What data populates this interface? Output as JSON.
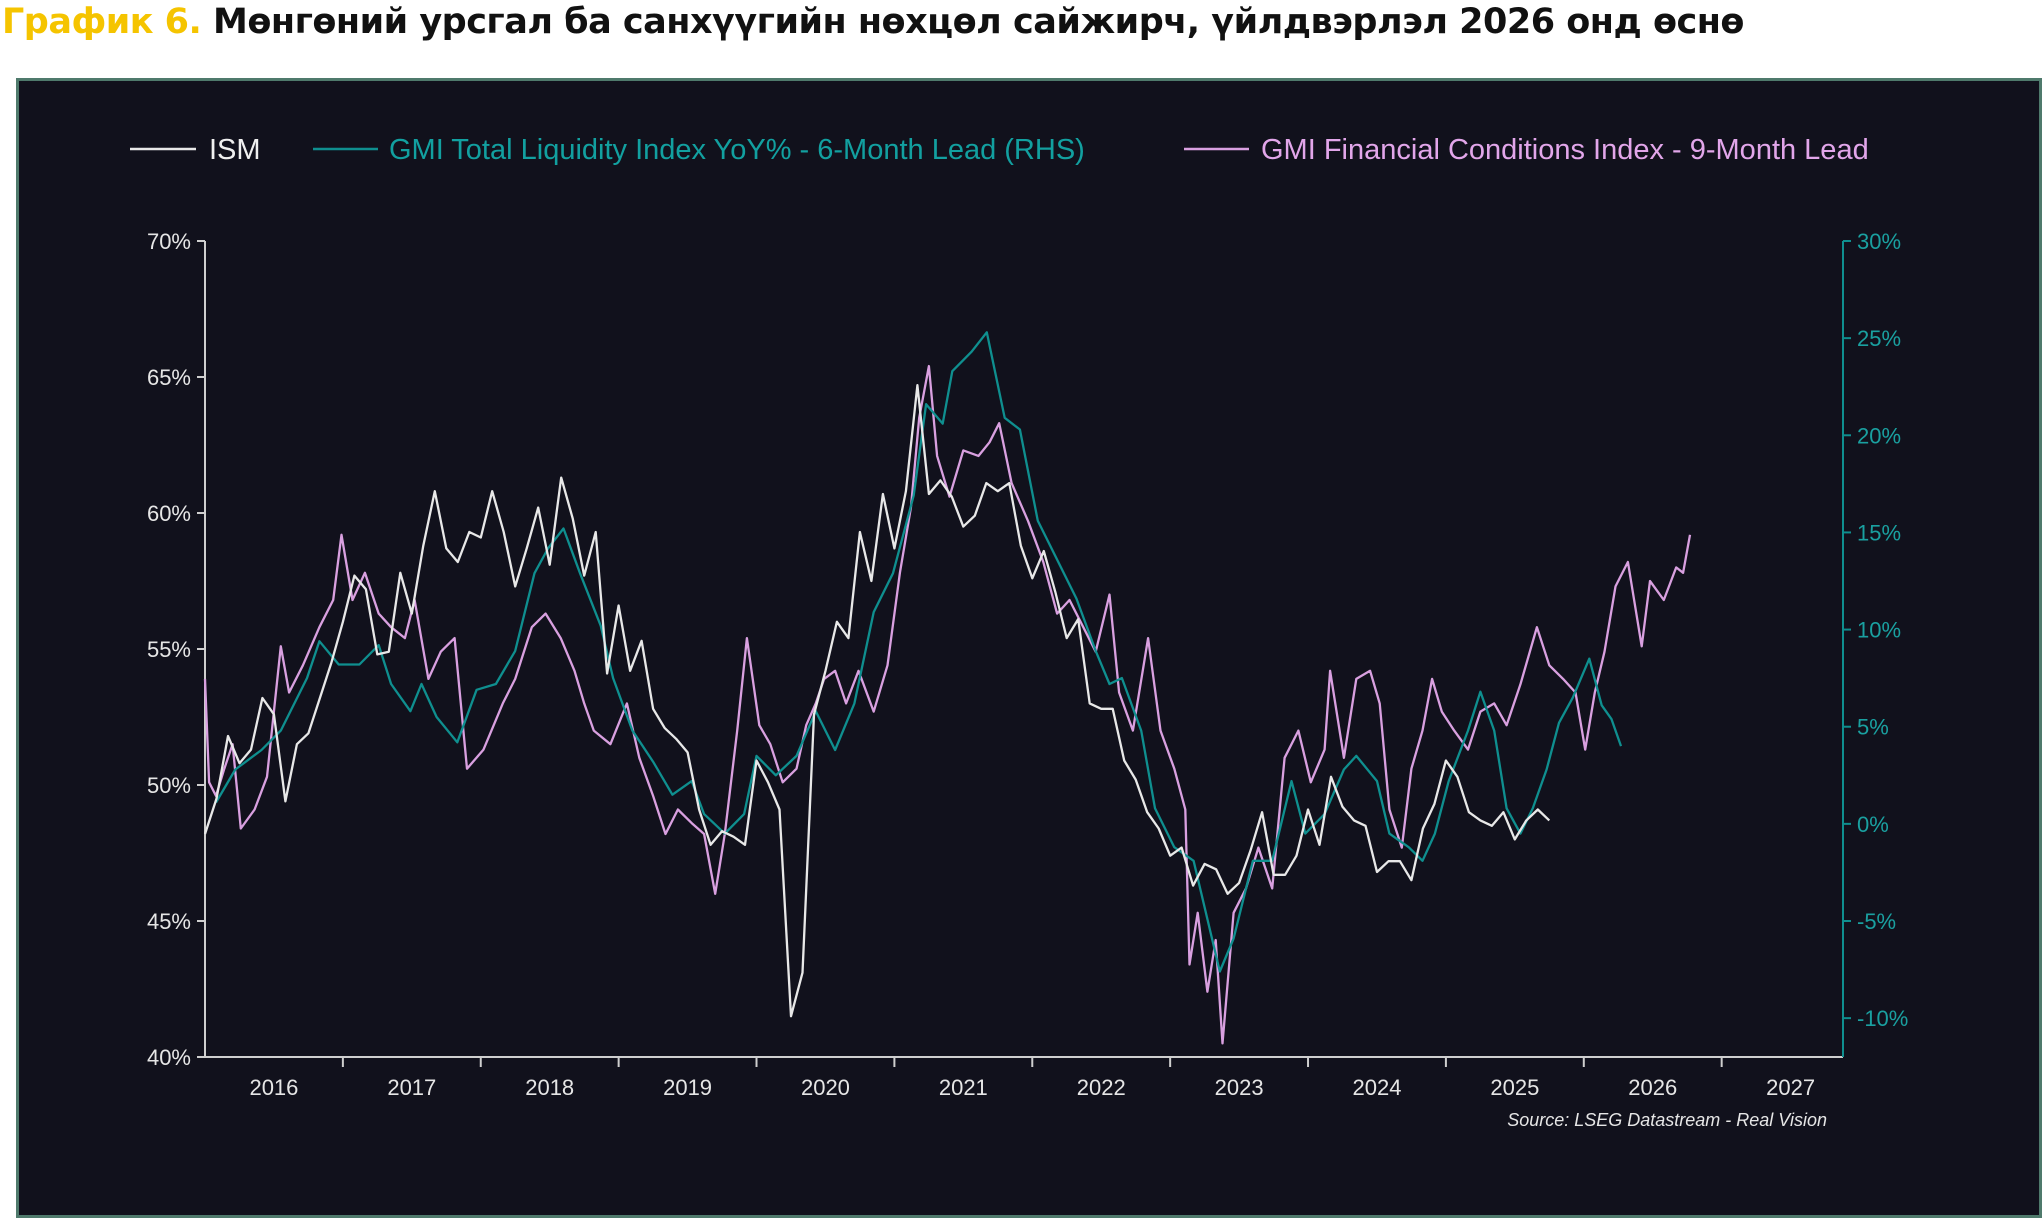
{
  "title": {
    "number": "График 6.",
    "text": "Мөнгөний урсгал ба санхүүгийн нөхцөл сайжирч, үйлдвэрлэл 2026 онд өснө"
  },
  "chart_data": {
    "type": "line",
    "title": "",
    "legend_position": "top",
    "grid": false,
    "source": "Source: LSEG Datastream - Real Vision",
    "x_ticks": [
      "2016",
      "2017",
      "2018",
      "2019",
      "2020",
      "2021",
      "2022",
      "2023",
      "2024",
      "2025",
      "2026",
      "2027"
    ],
    "xlim": [
      2016,
      2027.88
    ],
    "left_axis": {
      "ylim": [
        40,
        70
      ],
      "ticks": [
        "40%",
        "45%",
        "50%",
        "55%",
        "60%",
        "65%",
        "70%"
      ],
      "tick_values": [
        40,
        45,
        50,
        55,
        60,
        65,
        70
      ]
    },
    "right_axis": {
      "ylim": [
        -12,
        30
      ],
      "ticks": [
        "-10%",
        "-5%",
        "0%",
        "5%",
        "10%",
        "15%",
        "20%",
        "25%",
        "30%"
      ],
      "tick_values": [
        -10,
        -5,
        0,
        5,
        10,
        15,
        20,
        25,
        30
      ]
    },
    "series": [
      {
        "name": "ISM",
        "axis": "left",
        "color": "#e8e8e8",
        "x_start": 2016.0,
        "x_step_months": 1,
        "values": [
          48.2,
          49.5,
          51.8,
          50.8,
          51.3,
          53.2,
          52.6,
          49.4,
          51.5,
          51.9,
          53.2,
          54.5,
          56.0,
          57.7,
          57.2,
          54.8,
          54.9,
          57.8,
          56.3,
          58.8,
          60.8,
          58.7,
          58.2,
          59.3,
          59.1,
          60.8,
          59.3,
          57.3,
          58.7,
          60.2,
          58.1,
          61.3,
          59.8,
          57.7,
          59.3,
          54.1,
          56.6,
          54.2,
          55.3,
          52.8,
          52.1,
          51.7,
          51.2,
          49.1,
          47.8,
          48.3,
          48.1,
          47.8,
          50.9,
          50.1,
          49.1,
          41.5,
          43.1,
          52.6,
          54.2,
          56.0,
          55.4,
          59.3,
          57.5,
          60.7,
          58.7,
          60.8,
          64.7,
          60.7,
          61.2,
          60.6,
          59.5,
          59.9,
          61.1,
          60.8,
          61.1,
          58.8,
          57.6,
          58.6,
          57.1,
          55.4,
          56.1,
          53.0,
          52.8,
          52.8,
          50.9,
          50.2,
          49.0,
          48.4,
          47.4,
          47.7,
          46.3,
          47.1,
          46.9,
          46.0,
          46.4,
          47.6,
          49.0,
          46.7,
          46.7,
          47.4,
          49.1,
          47.8,
          50.3,
          49.2,
          48.7,
          48.5,
          46.8,
          47.2,
          47.2,
          46.5,
          48.4,
          49.3,
          50.9,
          50.3,
          49.0,
          48.7,
          48.5,
          49.0,
          48.0,
          48.7,
          49.1,
          48.7
        ]
      },
      {
        "name": "GMI Total Liquidity Index YoY% - 6-Month Lead (RHS)",
        "axis": "right",
        "color": "#0f8f8f",
        "x": [
          2016.08,
          2016.22,
          2016.41,
          2016.55,
          2016.74,
          2016.83,
          2016.97,
          2017.12,
          2017.26,
          2017.35,
          2017.49,
          2017.57,
          2017.68,
          2017.83,
          2017.97,
          2018.11,
          2018.25,
          2018.39,
          2018.49,
          2018.6,
          2018.72,
          2018.87,
          2018.96,
          2019.1,
          2019.25,
          2019.39,
          2019.53,
          2019.62,
          2019.77,
          2019.91,
          2020.0,
          2020.14,
          2020.29,
          2020.43,
          2020.57,
          2020.71,
          2020.85,
          2020.99,
          2021.14,
          2021.23,
          2021.35,
          2021.42,
          2021.56,
          2021.67,
          2021.8,
          2021.91,
          2022.04,
          2022.18,
          2022.32,
          2022.46,
          2022.56,
          2022.65,
          2022.79,
          2022.89,
          2023.03,
          2023.17,
          2023.27,
          2023.36,
          2023.46,
          2023.6,
          2023.74,
          2023.88,
          2023.98,
          2024.12,
          2024.26,
          2024.35,
          2024.5,
          2024.59,
          2024.73,
          2024.83,
          2024.92,
          2025.02,
          2025.16,
          2025.25,
          2025.35,
          2025.44,
          2025.54,
          2025.63,
          2025.73,
          2025.82,
          2025.92,
          2026.04,
          2026.13,
          2026.2,
          2026.27
        ],
        "values": [
          1.1,
          2.8,
          3.8,
          4.8,
          7.5,
          9.4,
          8.2,
          8.2,
          9.2,
          7.2,
          5.8,
          7.2,
          5.5,
          4.2,
          6.9,
          7.2,
          8.9,
          12.9,
          14.2,
          15.2,
          12.9,
          10.2,
          7.5,
          4.8,
          3.2,
          1.5,
          2.2,
          0.5,
          -0.5,
          0.5,
          3.5,
          2.5,
          3.5,
          5.8,
          3.8,
          6.2,
          10.9,
          12.9,
          16.9,
          21.6,
          20.6,
          23.3,
          24.3,
          25.3,
          20.9,
          20.3,
          15.6,
          13.6,
          11.6,
          8.9,
          7.2,
          7.5,
          4.8,
          0.8,
          -1.2,
          -1.9,
          -4.9,
          -7.6,
          -5.9,
          -1.9,
          -1.9,
          2.2,
          -0.5,
          0.5,
          2.8,
          3.5,
          2.2,
          -0.5,
          -1.2,
          -1.9,
          -0.5,
          2.2,
          4.8,
          6.8,
          4.8,
          0.8,
          -0.5,
          0.8,
          2.8,
          5.2,
          6.5,
          8.5,
          6.1,
          5.4,
          4.0
        ]
      },
      {
        "name": "GMI Financial Conditions Index - 9-Month Lead",
        "axis": "left",
        "color": "#d9a0e0",
        "x": [
          2016.0,
          2016.03,
          2016.08,
          2016.14,
          2016.2,
          2016.26,
          2016.36,
          2016.45,
          2016.55,
          2016.61,
          2016.71,
          2016.83,
          2016.93,
          2016.99,
          2017.07,
          2017.16,
          2017.26,
          2017.35,
          2017.45,
          2017.52,
          2017.62,
          2017.71,
          2017.81,
          2017.9,
          2018.02,
          2018.16,
          2018.25,
          2018.37,
          2018.47,
          2018.58,
          2018.68,
          2018.75,
          2018.82,
          2018.94,
          2019.06,
          2019.15,
          2019.25,
          2019.34,
          2019.43,
          2019.53,
          2019.62,
          2019.7,
          2019.77,
          2019.86,
          2019.93,
          2020.02,
          2020.1,
          2020.19,
          2020.29,
          2020.36,
          2020.43,
          2020.49,
          2020.57,
          2020.65,
          2020.74,
          2020.85,
          2020.95,
          2021.04,
          2021.12,
          2021.18,
          2021.25,
          2021.31,
          2021.4,
          2021.5,
          2021.61,
          2021.69,
          2021.76,
          2021.85,
          2021.97,
          2022.08,
          2022.18,
          2022.27,
          2022.37,
          2022.46,
          2022.56,
          2022.63,
          2022.73,
          2022.84,
          2022.93,
          2023.03,
          2023.11,
          2023.14,
          2023.2,
          2023.27,
          2023.33,
          2023.38,
          2023.46,
          2023.55,
          2023.64,
          2023.74,
          2023.83,
          2023.93,
          2024.02,
          2024.12,
          2024.16,
          2024.26,
          2024.35,
          2024.45,
          2024.52,
          2024.59,
          2024.68,
          2024.75,
          2024.83,
          2024.9,
          2024.97,
          2025.06,
          2025.16,
          2025.25,
          2025.35,
          2025.44,
          2025.54,
          2025.66,
          2025.75,
          2025.85,
          2025.94,
          2026.01,
          2026.08,
          2026.15,
          2026.23,
          2026.32,
          2026.42,
          2026.48,
          2026.58,
          2026.67,
          2026.72,
          2026.77
        ],
        "values": [
          53.9,
          50.1,
          49.6,
          50.6,
          51.5,
          48.4,
          49.1,
          50.3,
          55.1,
          53.4,
          54.4,
          55.8,
          56.8,
          59.2,
          56.8,
          57.8,
          56.3,
          55.8,
          55.4,
          56.8,
          53.9,
          54.9,
          55.4,
          50.6,
          51.3,
          53.0,
          53.9,
          55.8,
          56.3,
          55.4,
          54.2,
          53.0,
          52.0,
          51.5,
          53.0,
          51.0,
          49.6,
          48.2,
          49.1,
          48.6,
          48.2,
          46.0,
          48.2,
          52.0,
          55.4,
          52.2,
          51.5,
          50.1,
          50.6,
          52.2,
          53.0,
          53.9,
          54.2,
          53.0,
          54.2,
          52.7,
          54.4,
          57.8,
          60.2,
          63.5,
          65.4,
          62.1,
          60.6,
          62.3,
          62.1,
          62.6,
          63.3,
          61.1,
          59.7,
          58.2,
          56.3,
          56.8,
          55.8,
          54.9,
          57.0,
          53.4,
          52.0,
          55.4,
          52.0,
          50.6,
          49.1,
          43.4,
          45.3,
          42.4,
          44.3,
          40.5,
          45.3,
          46.2,
          47.7,
          46.2,
          51.0,
          52.0,
          50.1,
          51.3,
          54.2,
          51.0,
          53.9,
          54.2,
          53.0,
          49.1,
          47.7,
          50.6,
          52.0,
          53.9,
          52.7,
          52.0,
          51.3,
          52.7,
          53.0,
          52.2,
          53.7,
          55.8,
          54.4,
          53.9,
          53.4,
          51.3,
          53.4,
          54.9,
          57.3,
          58.2,
          55.1,
          57.5,
          56.8,
          58.0,
          57.8,
          59.2
        ]
      }
    ]
  }
}
